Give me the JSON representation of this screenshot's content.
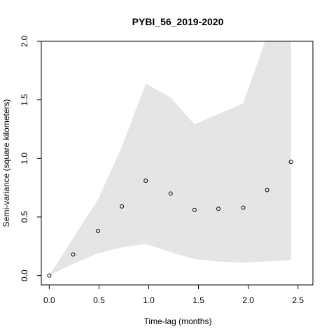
{
  "chart_data": {
    "type": "scatter",
    "title": "PYBI_56_2019-2020",
    "xlabel": "Time-lag (months)",
    "ylabel": "Semi-variance (square kilometers)",
    "xlim": [
      -0.08,
      2.65
    ],
    "ylim": [
      -0.08,
      2.0
    ],
    "xticks": [
      "0.0",
      "0.5",
      "1.0",
      "1.5",
      "2.0",
      "2.5"
    ],
    "yticks": [
      "0.0",
      "0.5",
      "1.0",
      "1.5",
      "2.0"
    ],
    "grid": false,
    "legend": "none",
    "series": [
      {
        "kind": "points",
        "x": [
          0.0,
          0.24,
          0.49,
          0.73,
          0.97,
          1.22,
          1.46,
          1.7,
          1.95,
          2.19,
          2.43
        ],
        "y": [
          0.0,
          0.18,
          0.38,
          0.59,
          0.81,
          0.7,
          0.56,
          0.57,
          0.58,
          0.73,
          0.97
        ]
      }
    ],
    "envelope": {
      "x": [
        0.0,
        0.24,
        0.49,
        0.73,
        0.97,
        1.22,
        1.46,
        1.7,
        1.95,
        2.19,
        2.43
      ],
      "upper": [
        0.0,
        0.32,
        0.65,
        1.1,
        1.64,
        1.52,
        1.29,
        1.38,
        1.47,
        2.05,
        2.05
      ],
      "lower": [
        0.0,
        0.1,
        0.19,
        0.24,
        0.27,
        0.2,
        0.14,
        0.12,
        0.11,
        0.12,
        0.13
      ]
    },
    "colors": {
      "envelope": "#e5e5e5",
      "points": "#000000",
      "axes": "#000000"
    }
  }
}
